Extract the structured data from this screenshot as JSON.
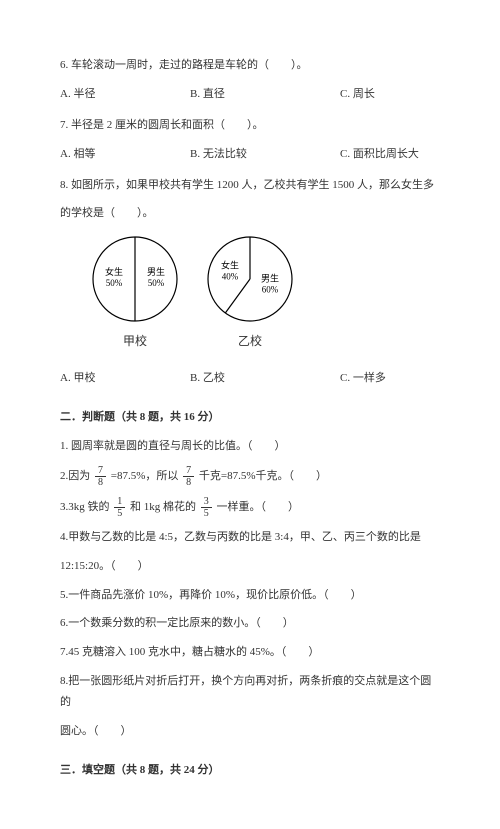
{
  "q6": {
    "text": "6. 车轮滚动一周时，走过的路程是车轮的（　　）。",
    "a": "A. 半径",
    "b": "B. 直径",
    "c": "C. 周长"
  },
  "q7": {
    "text": "7. 半径是 2 厘米的圆周长和面积（　　）。",
    "a": "A. 相等",
    "b": "B. 无法比较",
    "c": "C. 面积比周长大"
  },
  "q8": {
    "text1": "8. 如图所示，如果甲校共有学生 1200 人，乙校共有学生 1500 人，那么女生多",
    "text2": "的学校是（　　）。",
    "a": "A. 甲校",
    "b": "B. 乙校",
    "c": "C. 一样多"
  },
  "chart_jia": {
    "label": "甲校",
    "girl_label": "女生",
    "girl_pct": "50%",
    "boy_label": "男生",
    "boy_pct": "50%",
    "radius": 42,
    "girl_angle": 180,
    "stroke": "#000000",
    "fill": "#ffffff",
    "font_size": 9
  },
  "chart_yi": {
    "label": "乙校",
    "girl_label": "女生",
    "girl_pct": "40%",
    "boy_label": "男生",
    "boy_pct": "60%",
    "radius": 42,
    "girl_angle": 144,
    "stroke": "#000000",
    "fill": "#ffffff",
    "font_size": 9
  },
  "section2": {
    "title": "二．判断题（共 8 题，共 16 分）",
    "j1": "1. 圆周率就是圆的直径与周长的比值。（　　）",
    "j2a": "2.因为",
    "j2_frac_n": "7",
    "j2_frac_d": "8",
    "j2b": "=87.5%，所以",
    "j2c": "千克=87.5%千克。（　　）",
    "j3a": "3.3kg 铁的",
    "j3_f1n": "1",
    "j3_f1d": "5",
    "j3b": "和 1kg 棉花的",
    "j3_f2n": "3",
    "j3_f2d": "5",
    "j3c": "一样重。（　　）",
    "j4a": "4.甲数与乙数的比是 4:5，乙数与丙数的比是 3:4，甲、乙、丙三个数的比是",
    "j4b": "12:15:20。（　　）",
    "j5": "5.一件商品先涨价 10%，再降价 10%，现价比原价低。（　　）",
    "j6": "6.一个数乘分数的积一定比原来的数小。（　　）",
    "j7": "7.45 克糖溶入 100 克水中，糖占糖水的 45%。（　　）",
    "j8a": "8.把一张圆形纸片对折后打开，换个方向再对折，两条折痕的交点就是这个圆的",
    "j8b": "圆心。（　　）"
  },
  "section3": {
    "title": "三．填空题（共 8 题，共 24 分）"
  }
}
